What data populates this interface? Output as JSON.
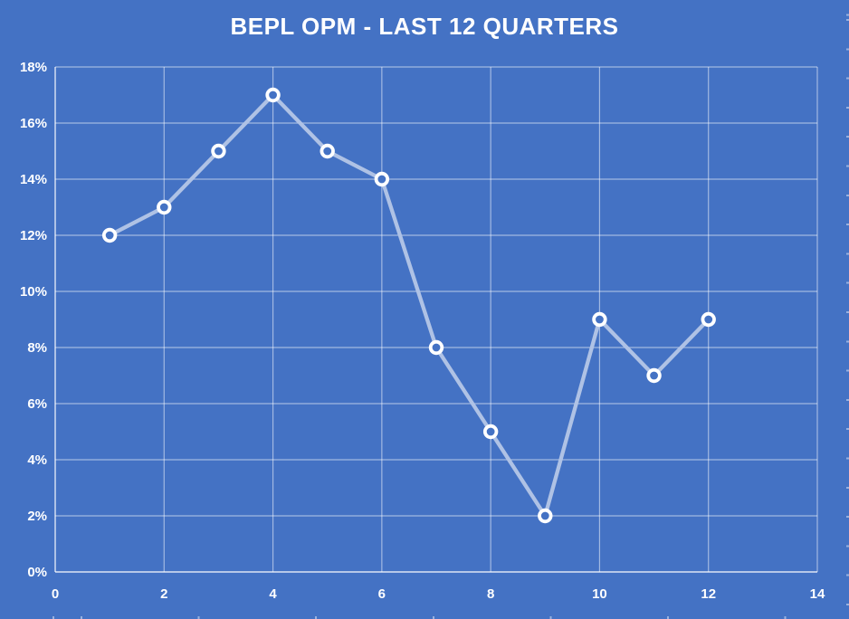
{
  "chart_data": {
    "type": "line",
    "title": "BEPL OPM - LAST 12 QUARTERS",
    "x": [
      1,
      2,
      3,
      4,
      5,
      6,
      7,
      8,
      9,
      10,
      11,
      12
    ],
    "values": [
      12,
      13,
      15,
      17,
      15,
      14,
      8,
      5,
      2,
      9,
      7,
      9
    ],
    "value_unit": "percent",
    "xlim": [
      0,
      14
    ],
    "ylim": [
      0,
      18
    ],
    "x_ticks": [
      0,
      2,
      4,
      6,
      8,
      10,
      12,
      14
    ],
    "x_tick_labels": [
      "0",
      "2",
      "4",
      "6",
      "8",
      "10",
      "12",
      "14"
    ],
    "y_ticks": [
      0,
      2,
      4,
      6,
      8,
      10,
      12,
      14,
      16,
      18
    ],
    "y_tick_labels": [
      "0%",
      "2%",
      "4%",
      "6%",
      "8%",
      "10%",
      "12%",
      "14%",
      "16%",
      "18%"
    ],
    "grid": "major-both",
    "legend": "none",
    "marker": "open-circle",
    "xlabel": "",
    "ylabel": ""
  },
  "colors": {
    "background": "#4472C4",
    "series_line": "#AFC2E5",
    "marker_stroke": "#FFFFFF",
    "marker_fill": "#4472C4",
    "gridline": "rgba(255,255,255,0.5)",
    "axis_line": "rgba(255,255,255,0.82)",
    "text": "#FFFFFF"
  }
}
